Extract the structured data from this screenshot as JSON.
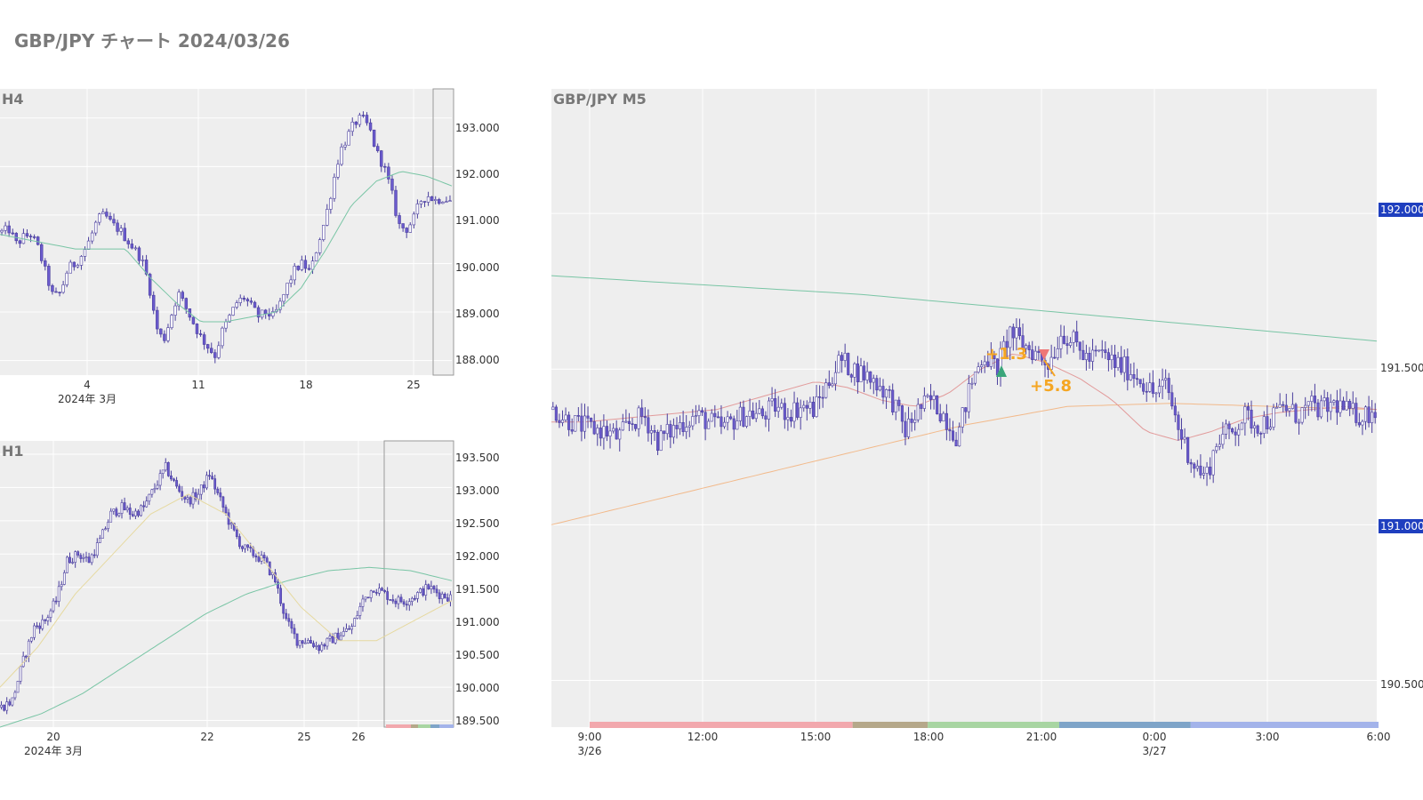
{
  "page": {
    "title": "GBP/JPY チャート 2024/03/26"
  },
  "colors": {
    "plot_bg": "#eeeeee",
    "grid": "#ffffff",
    "candle": "#6a5acd",
    "candle_dark": "#4b3f9e",
    "ma_green": "#79c5a5",
    "ma_orange": "#f2b98a",
    "ma_red": "#e29a9a",
    "ma_yellow": "#e6d9a0",
    "price_tag_bg": "#1f3fbf",
    "annotation": "#f5a623",
    "entry_buy": "#3aa57a",
    "exit_sell": "#ee7777",
    "axis_text": "#333333"
  },
  "chart_data": [
    {
      "id": "h4",
      "type": "candlestick",
      "title": "H4",
      "x_tick_labels": [
        "4",
        "11",
        "18",
        "25"
      ],
      "x_sub_label": "2024年 3月",
      "y_tick_labels": [
        "193.000",
        "192.000",
        "191.000",
        "190.000",
        "189.000",
        "188.000"
      ],
      "ylim": [
        187.7,
        193.6
      ],
      "highlight_region": "last day (3/26)",
      "close_path": [
        190.65,
        190.7,
        190.4,
        190.55,
        190.6,
        190.3,
        189.8,
        189.3,
        189.4,
        189.9,
        190.0,
        190.2,
        190.5,
        190.9,
        191.0,
        190.8,
        190.7,
        190.5,
        190.3,
        190.1,
        189.6,
        188.7,
        188.4,
        188.9,
        189.4,
        189.1,
        188.8,
        188.5,
        188.3,
        188.1,
        188.6,
        188.9,
        189.2,
        189.3,
        189.1,
        188.9,
        189.0,
        188.9,
        189.2,
        189.6,
        189.9,
        190.0,
        189.8,
        190.4,
        190.9,
        191.6,
        192.3,
        192.6,
        192.9,
        193.0,
        192.8,
        192.3,
        192.0,
        191.5,
        190.8,
        190.7,
        190.9,
        191.3,
        191.4,
        191.3,
        191.35,
        191.3
      ],
      "ma_green": [
        190.6,
        190.5,
        190.4,
        190.3,
        190.3,
        190.3,
        189.7,
        189.2,
        188.8,
        188.8,
        188.9,
        189.0,
        189.5,
        190.3,
        191.2,
        191.7,
        191.9,
        191.8,
        191.6
      ]
    },
    {
      "id": "h1",
      "type": "candlestick",
      "title": "H1",
      "x_tick_labels": [
        "20",
        "22",
        "25",
        "26"
      ],
      "x_sub_label": "2024年 3月",
      "y_tick_labels": [
        "193.500",
        "193.000",
        "192.500",
        "192.000",
        "191.500",
        "191.000",
        "190.500",
        "190.000",
        "189.500"
      ],
      "ylim": [
        189.4,
        193.7
      ],
      "highlight_region": "last day (3/26)",
      "close_path": [
        189.7,
        189.8,
        190.4,
        190.9,
        191.0,
        191.3,
        191.9,
        192.0,
        191.9,
        192.2,
        192.6,
        192.7,
        192.6,
        192.7,
        193.0,
        193.3,
        193.0,
        192.8,
        192.9,
        193.2,
        192.8,
        192.4,
        192.1,
        192.0,
        191.9,
        191.6,
        191.0,
        190.7,
        190.7,
        190.6,
        190.7,
        190.8,
        190.9,
        191.3,
        191.5,
        191.4,
        191.3,
        191.3,
        191.4,
        191.5,
        191.4,
        191.35
      ],
      "ma_green": [
        189.4,
        189.6,
        189.9,
        190.3,
        190.7,
        191.1,
        191.4,
        191.6,
        191.75,
        191.8,
        191.75,
        191.6
      ],
      "ma_yellow": [
        190.0,
        190.6,
        191.4,
        192.0,
        192.6,
        192.9,
        192.6,
        191.9,
        191.2,
        190.7,
        190.7,
        191.0,
        191.3
      ]
    },
    {
      "id": "m5",
      "type": "candlestick",
      "title": "GBP/JPY M5",
      "x_tick_labels": [
        "9:00",
        "12:00",
        "15:00",
        "18:00",
        "21:00",
        "0:00",
        "3:00",
        "6:00"
      ],
      "x_sub_labels": [
        "3/26",
        "3/27"
      ],
      "y_tick_labels": [
        "192.000",
        "191.500",
        "191.000",
        "190.500"
      ],
      "price_tags": [
        "192.000",
        "191.000"
      ],
      "ylim": [
        190.35,
        192.4
      ],
      "close_path": [
        191.37,
        191.34,
        191.32,
        191.31,
        191.3,
        191.28,
        191.33,
        191.35,
        191.27,
        191.3,
        191.33,
        191.35,
        191.33,
        191.31,
        191.34,
        191.36,
        191.35,
        191.38,
        191.36,
        191.38,
        191.37,
        191.45,
        191.53,
        191.5,
        191.48,
        191.45,
        191.4,
        191.3,
        191.37,
        191.4,
        191.35,
        191.28,
        191.45,
        191.55,
        191.5,
        191.62,
        191.58,
        191.55,
        191.52,
        191.62,
        191.58,
        191.53,
        191.55,
        191.52,
        191.5,
        191.47,
        191.42,
        191.45,
        191.3,
        191.2,
        191.15,
        191.28,
        191.3,
        191.35,
        191.32,
        191.34,
        191.38,
        191.35,
        191.38,
        191.37,
        191.39,
        191.36,
        191.35,
        191.37
      ],
      "ma_green": [
        191.8,
        191.78,
        191.76,
        191.74,
        191.71,
        191.68,
        191.65,
        191.62,
        191.59
      ],
      "ma_orange": [
        191.0,
        191.08,
        191.16,
        191.24,
        191.32,
        191.38,
        191.39,
        191.38,
        191.37
      ],
      "ma_red": [
        191.33,
        191.33,
        191.34,
        191.35,
        191.36,
        191.37,
        191.4,
        191.43,
        191.46,
        191.44,
        191.4,
        191.38,
        191.42,
        191.5,
        191.55,
        191.52,
        191.47,
        191.4,
        191.3,
        191.27,
        191.3,
        191.34,
        191.36,
        191.37,
        191.38,
        191.37
      ],
      "trades": [
        {
          "label": "+1.3",
          "side": "buy",
          "entry_hour": 19.95,
          "entry_price": 191.48
        },
        {
          "label": "+5.8",
          "side": "sell",
          "entry_hour": 21.1,
          "entry_price": 191.55
        }
      ],
      "sessions": [
        {
          "from_hour": 9,
          "to_hour": 16,
          "color": "#f2a8ad"
        },
        {
          "from_hour": 16,
          "to_hour": 18,
          "color": "#b5a88a"
        },
        {
          "from_hour": 18,
          "to_hour": 21.5,
          "color": "#a8d5a2"
        },
        {
          "from_hour": 21.5,
          "to_hour": 25,
          "color": "#7ea4c8"
        },
        {
          "from_hour": 25,
          "to_hour": 30,
          "color": "#a3b3ea"
        }
      ]
    }
  ]
}
